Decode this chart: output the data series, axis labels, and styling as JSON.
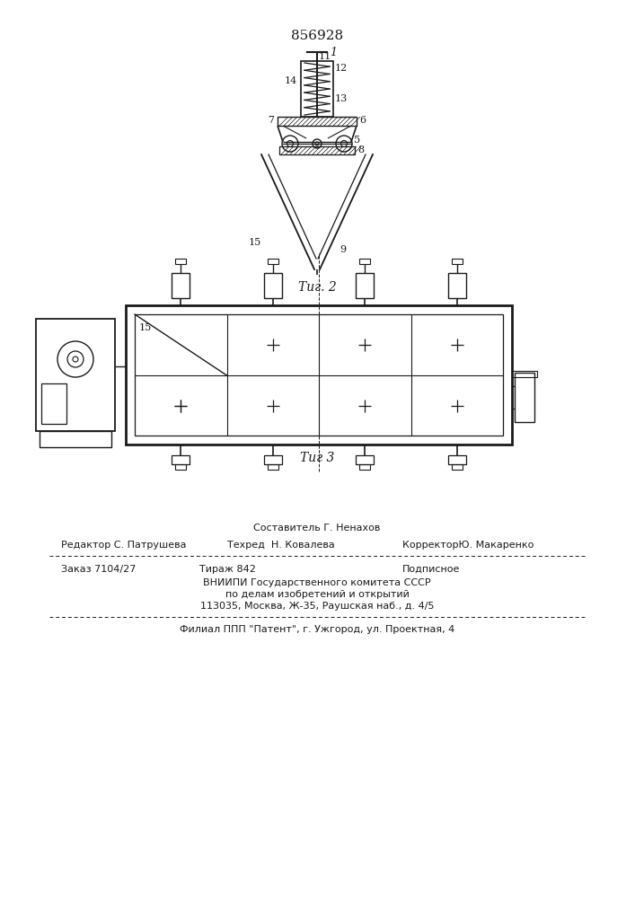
{
  "patent_number": "856928",
  "fig2_caption": "Τиг. 2",
  "fig3_caption": "Τиг 3",
  "bg_color": "#ffffff",
  "line_color": "#1a1a1a",
  "footer": {
    "line1_center": "Составитель Г. Ненахов",
    "line2_left": "Редактор С. Патрушева",
    "line2_center": "Техред  Н. Ковалева",
    "line2_right": "КорректорЮ. Макаренко",
    "line3_left": "Заказ 7104/27",
    "line3_center": "Тираж 842",
    "line3_right": "Подписное",
    "line4": "ВНИИПИ Государственного комитета СССР",
    "line5": "по делам изобретений и открытий",
    "line6": "113035, Москва, Ж-35, Раушская наб., д. 4/5",
    "line7": "Филиал ППП \"Патент\", г. Ужгород, ул. Проектная, 4"
  }
}
